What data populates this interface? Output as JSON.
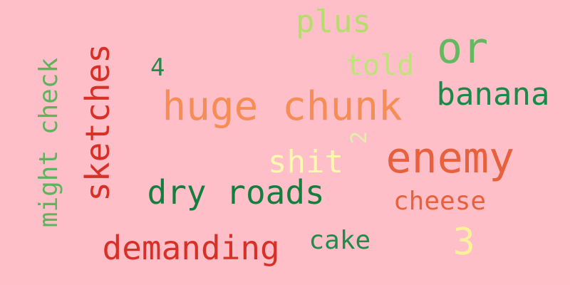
{
  "background": "#ffbfc9",
  "words": [
    {
      "id": "huge-chunk",
      "text": "huge chunk",
      "color": "#f68d55"
    },
    {
      "id": "enemy",
      "text": "enemy",
      "color": "#e8613d"
    },
    {
      "id": "sketches",
      "text": "sketches",
      "color": "#d73127",
      "orientation": "vertical"
    },
    {
      "id": "dry-roads",
      "text": "dry roads",
      "color": "#147e3f"
    },
    {
      "id": "demanding",
      "text": "demanding",
      "color": "#d73127"
    },
    {
      "id": "or",
      "text": "or",
      "color": "#63b860"
    },
    {
      "id": "banana",
      "text": "banana",
      "color": "#1a8a4a"
    },
    {
      "id": "might-check",
      "text": "might check",
      "color": "#5fb35d",
      "orientation": "vertical"
    },
    {
      "id": "plus",
      "text": "plus",
      "color": "#b5dd6b"
    },
    {
      "id": "shit",
      "text": "shit",
      "color": "#fff9b0"
    },
    {
      "id": "cheese",
      "text": "cheese",
      "color": "#e8613d"
    },
    {
      "id": "3",
      "text": "3",
      "color": "#fdf09a"
    },
    {
      "id": "told",
      "text": "told",
      "color": "#bfe37b"
    },
    {
      "id": "cake",
      "text": "cake",
      "color": "#1f8c4b"
    },
    {
      "id": "4",
      "text": "4",
      "color": "#1f8c4b"
    },
    {
      "id": "2",
      "text": "2",
      "color": "#dff0a8",
      "orientation": "vertical"
    }
  ]
}
